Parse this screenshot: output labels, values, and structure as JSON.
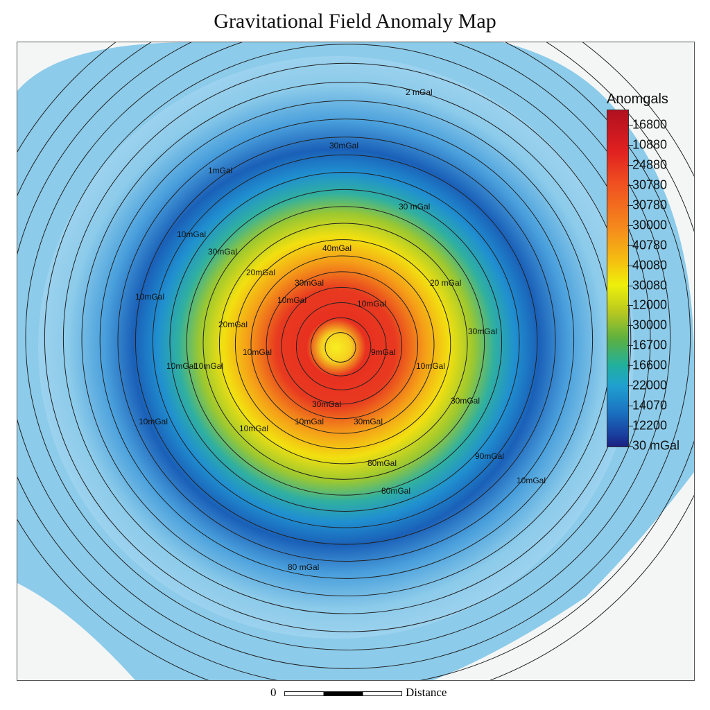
{
  "title": "Gravitational Field Anomaly Map",
  "colors": {
    "high": "#d42020",
    "mid": "#f0e010",
    "low": "#1a50b0",
    "background_water": "#8ccbea",
    "land": "#f4f6f6"
  },
  "legend": {
    "title": "Anomgals",
    "labels": [
      "16800",
      "10880",
      "24880",
      "30780",
      "30780",
      "30000",
      "40780",
      "40080",
      "30080",
      "12000",
      "30000",
      "16700",
      "16600",
      "22000",
      "14070",
      "12200",
      "30 mGal"
    ]
  },
  "contour_labels": [
    "2 mGal",
    "30mGal",
    "1mGal",
    "30 mGal",
    "10mGal",
    "30mGal",
    "40mGal",
    "20mGal",
    "10mGal",
    "30mGal",
    "20 mGal",
    "10mGal",
    "10mGal",
    "10mGal",
    "20mGal",
    "10mGal",
    "10mGal",
    "30mGal",
    "9mGal",
    "10mGal",
    "30mGal",
    "30mGal",
    "10mGal",
    "10mGal",
    "80mGal",
    "80mGal",
    "30mGal",
    "90mGal",
    "80 mGal",
    "10mGal",
    "10mGal"
  ],
  "scale": {
    "zero": "0",
    "label": "Distance"
  }
}
